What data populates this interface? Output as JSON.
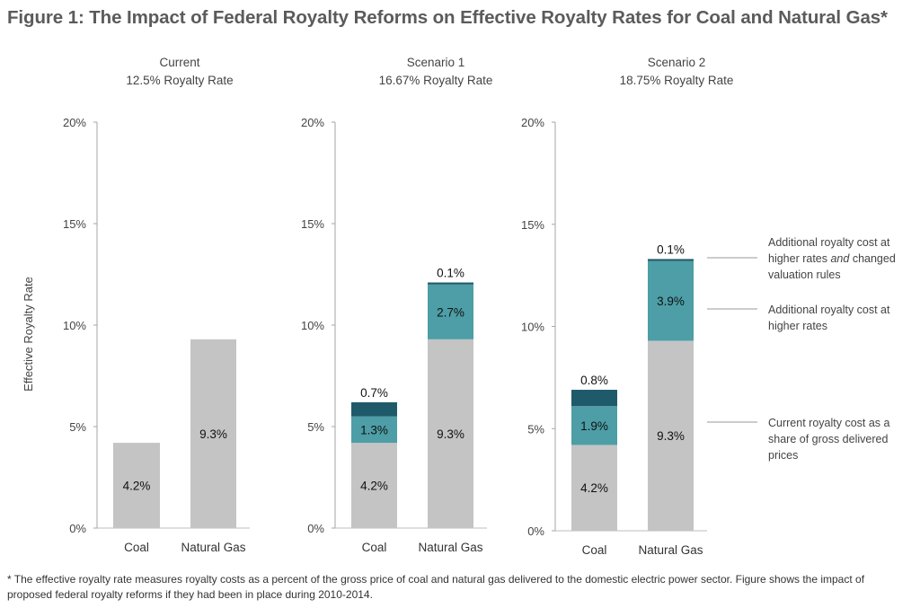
{
  "title": "Figure 1: The Impact of Federal Royalty Reforms on Effective Royalty Rates for Coal and Natural Gas*",
  "chart_data": {
    "type": "bar",
    "stacked": true,
    "ylabel": "Effective Royalty Rate",
    "ylim": [
      0,
      20
    ],
    "yticks": [
      "0%",
      "5%",
      "10%",
      "15%",
      "20%"
    ],
    "categories": [
      "Coal",
      "Natural Gas"
    ],
    "colors": {
      "current": "#c4c4c4",
      "higher_rates": "#4d9ea6",
      "valuation": "#1f5a6b"
    },
    "panels": [
      {
        "title": "Current",
        "subtitle": "12.5% Royalty Rate",
        "series": [
          {
            "key": "current",
            "values": [
              4.2,
              9.3
            ],
            "labels": [
              "4.2%",
              "9.3%"
            ]
          }
        ]
      },
      {
        "title": "Scenario 1",
        "subtitle": "16.67% Royalty Rate",
        "series": [
          {
            "key": "current",
            "values": [
              4.2,
              9.3
            ],
            "labels": [
              "4.2%",
              "9.3%"
            ]
          },
          {
            "key": "higher_rates",
            "values": [
              1.3,
              2.7
            ],
            "labels": [
              "1.3%",
              "2.7%"
            ]
          },
          {
            "key": "valuation",
            "values": [
              0.7,
              0.1
            ],
            "labels": [
              "0.7%",
              "0.1%"
            ]
          }
        ]
      },
      {
        "title": "Scenario 2",
        "subtitle": "18.75% Royalty Rate",
        "series": [
          {
            "key": "current",
            "values": [
              4.2,
              9.3
            ],
            "labels": [
              "4.2%",
              "9.3%"
            ]
          },
          {
            "key": "higher_rates",
            "values": [
              1.9,
              3.9
            ],
            "labels": [
              "1.9%",
              "3.9%"
            ]
          },
          {
            "key": "valuation",
            "values": [
              0.8,
              0.1
            ],
            "labels": [
              "0.8%",
              "0.1%"
            ]
          }
        ]
      }
    ],
    "annotations": [
      {
        "key": "valuation",
        "lines": [
          "Additional royalty cost at",
          "higher rates and changed",
          "valuation rules"
        ],
        "italic_word": "and"
      },
      {
        "key": "higher_rates",
        "lines": [
          "Additional royalty cost at",
          "higher rates"
        ]
      },
      {
        "key": "current",
        "lines": [
          "Current royalty cost as a",
          "share of gross delivered",
          "prices"
        ]
      }
    ]
  },
  "footnote": "* The effective royalty rate measures royalty costs as a percent of the gross price of coal and natural gas delivered to the domestic electric power sector. Figure shows the impact of proposed federal royalty reforms if they had been in place during 2010-2014."
}
